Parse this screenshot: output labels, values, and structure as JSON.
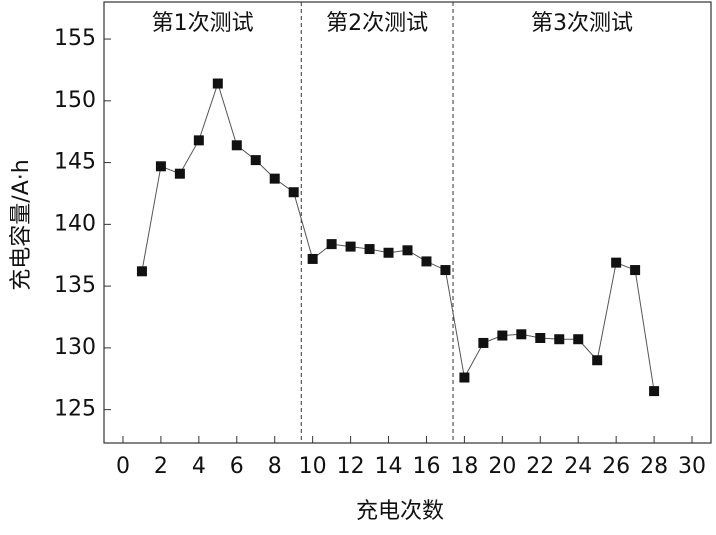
{
  "chart_data": {
    "type": "line",
    "x_label": "充电次数",
    "y_label": "充电容量/A·h",
    "x": [
      1,
      2,
      3,
      4,
      5,
      6,
      7,
      8,
      9,
      10,
      11,
      12,
      13,
      14,
      15,
      16,
      17,
      18,
      19,
      20,
      21,
      22,
      23,
      24,
      25,
      26,
      27,
      28
    ],
    "series": [
      {
        "color": "#111111",
        "values": [
          136.2,
          144.7,
          144.1,
          146.8,
          151.4,
          146.4,
          145.2,
          143.7,
          142.6,
          137.2,
          138.4,
          138.2,
          138.0,
          137.7,
          137.9,
          137.0,
          136.3,
          127.6,
          130.4,
          131.0,
          131.1,
          130.8,
          130.7,
          130.7,
          129.0,
          136.9,
          136.3,
          126.5
        ]
      }
    ],
    "xlim": [
      -1,
      31
    ],
    "ylim": [
      122.3,
      158
    ],
    "xticks": [
      0,
      2,
      4,
      6,
      8,
      10,
      12,
      14,
      16,
      18,
      20,
      22,
      24,
      26,
      28,
      30
    ],
    "yticks": [
      125,
      130,
      135,
      140,
      145,
      150,
      155
    ],
    "dividers": [
      9.4,
      17.4
    ],
    "sections": [
      "第1次测试",
      "第2次测试",
      "第3次测试"
    ]
  }
}
